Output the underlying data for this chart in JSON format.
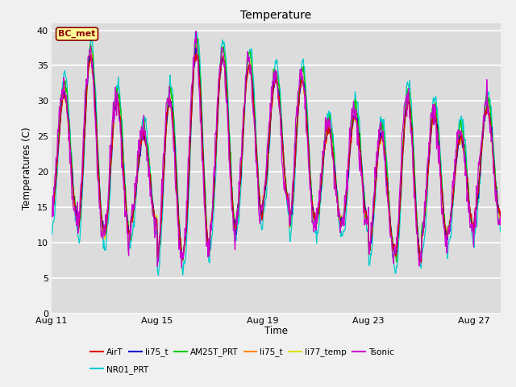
{
  "title": "Temperature",
  "xlabel": "Time",
  "ylabel": "Temperatures (C)",
  "annotation": "BC_met",
  "ylim": [
    0,
    41
  ],
  "yticks": [
    0,
    5,
    10,
    15,
    20,
    25,
    30,
    35,
    40
  ],
  "x_tick_labels": [
    "Aug 11",
    "Aug 15",
    "Aug 19",
    "Aug 23",
    "Aug 27"
  ],
  "x_tick_positions": [
    0,
    4,
    8,
    12,
    16
  ],
  "bg_color": "#dcdcdc",
  "fig_color": "#f0f0f0",
  "series": [
    {
      "name": "AirT",
      "color": "#dd0000"
    },
    {
      "name": "li75_t",
      "color": "#0000cc"
    },
    {
      "name": "AM25T_PRT",
      "color": "#00cc00"
    },
    {
      "name": "li75_t",
      "color": "#ff8800"
    },
    {
      "name": "li77_temp",
      "color": "#dddd00"
    },
    {
      "name": "Tsonic",
      "color": "#cc00cc"
    },
    {
      "name": "NR01_PRT",
      "color": "#00cccc"
    }
  ],
  "seed": 42,
  "n_days": 17,
  "samples_per_day": 48,
  "base_pattern": {
    "peaks": [
      31,
      36,
      30,
      25,
      30,
      37,
      36,
      35,
      33,
      33,
      26,
      28,
      25,
      30,
      28,
      25,
      29
    ],
    "troughs": [
      14,
      12,
      11,
      13,
      8,
      9,
      12,
      14,
      16,
      13,
      13,
      13,
      9,
      8,
      11,
      12,
      14
    ]
  }
}
